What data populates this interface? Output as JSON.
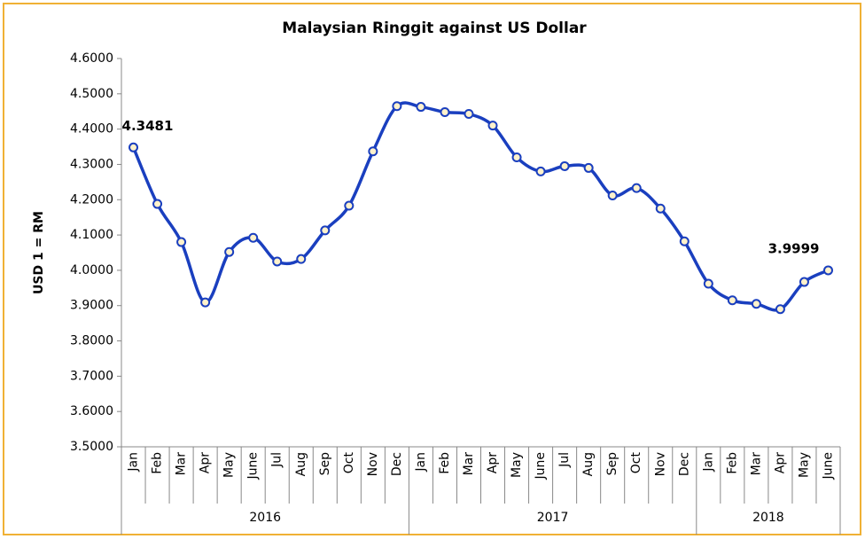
{
  "chart_data": {
    "type": "line",
    "title": "Malaysian Ringgit against US Dollar",
    "y_label": "USD 1 = RM",
    "groups": [
      {
        "name": "2016",
        "categories": [
          "Jan",
          "Feb",
          "Mar",
          "Apr",
          "May",
          "June",
          "Jul",
          "Aug",
          "Sep",
          "Oct",
          "Nov",
          "Dec"
        ]
      },
      {
        "name": "2017",
        "categories": [
          "Jan",
          "Feb",
          "Mar",
          "Apr",
          "May",
          "June",
          "Jul",
          "Aug",
          "Sep",
          "Oct",
          "Nov",
          "Dec"
        ]
      },
      {
        "name": "2018",
        "categories": [
          "Jan",
          "Feb",
          "Mar",
          "Apr",
          "May",
          "June"
        ]
      }
    ],
    "values": [
      4.3481,
      4.188,
      4.08,
      3.909,
      4.052,
      4.092,
      4.025,
      4.032,
      4.113,
      4.183,
      4.337,
      4.465,
      4.463,
      4.448,
      4.443,
      4.41,
      4.32,
      4.28,
      4.295,
      4.29,
      4.212,
      4.233,
      4.175,
      4.082,
      3.962,
      3.915,
      3.905,
      3.89,
      3.967,
      3.9999
    ],
    "labeled_points": [
      0,
      29
    ],
    "color": "#1a3fbf",
    "marker_fill": "#fff2cc",
    "ylim": [
      3.5,
      4.6
    ],
    "yticks": [
      {
        "value": 3.5,
        "label": "3.5000"
      },
      {
        "value": 3.6,
        "label": "3.6000"
      },
      {
        "value": 3.7,
        "label": "3.7000"
      },
      {
        "value": 3.8,
        "label": "3.8000"
      },
      {
        "value": 3.9,
        "label": "3.9000"
      },
      {
        "value": 4.0,
        "label": "4.0000"
      },
      {
        "value": 4.1,
        "label": "4.1000"
      },
      {
        "value": 4.2,
        "label": "4.2000"
      },
      {
        "value": 4.3,
        "label": "4.3000"
      },
      {
        "value": 4.4,
        "label": "4.4000"
      },
      {
        "value": 4.5,
        "label": "4.5000"
      },
      {
        "value": 4.6,
        "label": "4.6000"
      }
    ],
    "grid": false,
    "border_color": "#f0b135"
  }
}
